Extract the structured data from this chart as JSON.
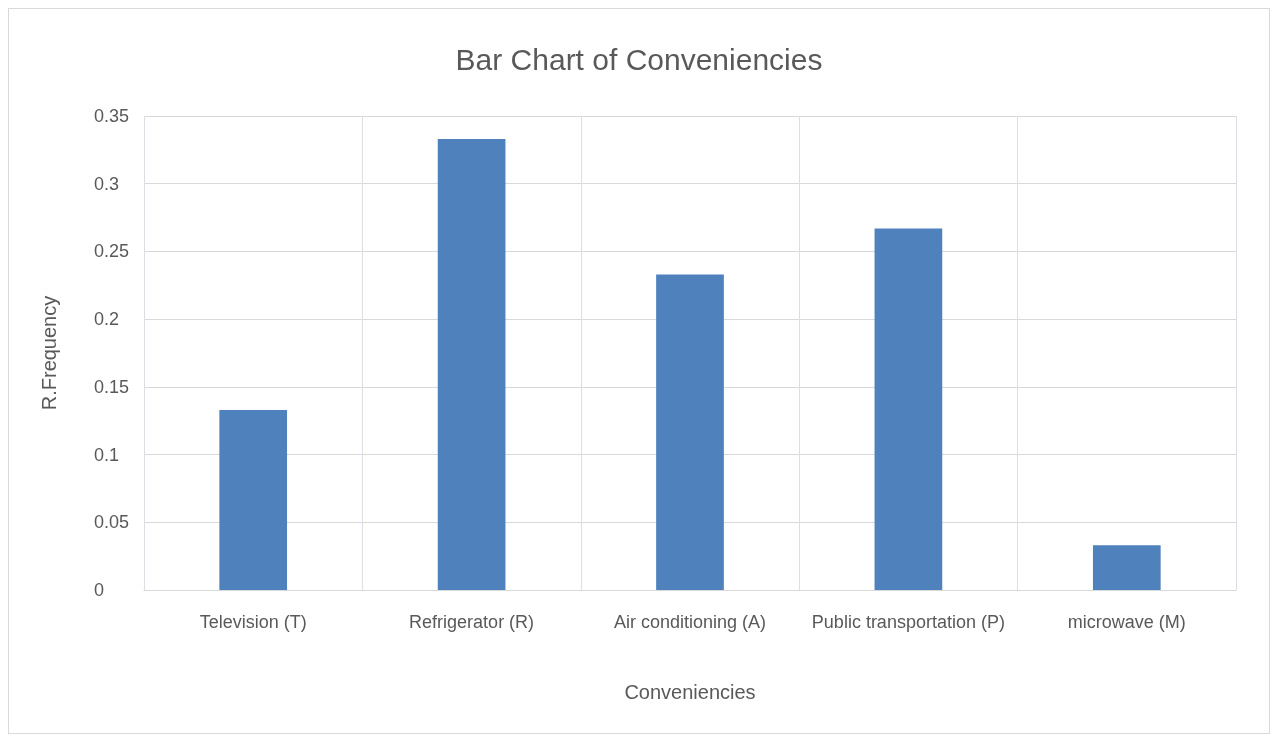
{
  "chart_data": {
    "type": "bar",
    "title": "Bar Chart of Conveniencies",
    "xlabel": "Conveniencies",
    "ylabel": "R.Frequency",
    "categories": [
      "Television (T)",
      "Refrigerator (R)",
      "Air conditioning (A)",
      "Public transportation (P)",
      "microwave (M)"
    ],
    "values": [
      0.133,
      0.333,
      0.233,
      0.267,
      0.033
    ],
    "color": "#4f81bd",
    "ylim": [
      0,
      0.35
    ],
    "yticks": [
      0,
      0.05,
      0.1,
      0.15,
      0.2,
      0.25,
      0.3,
      0.35
    ],
    "grid": true
  }
}
